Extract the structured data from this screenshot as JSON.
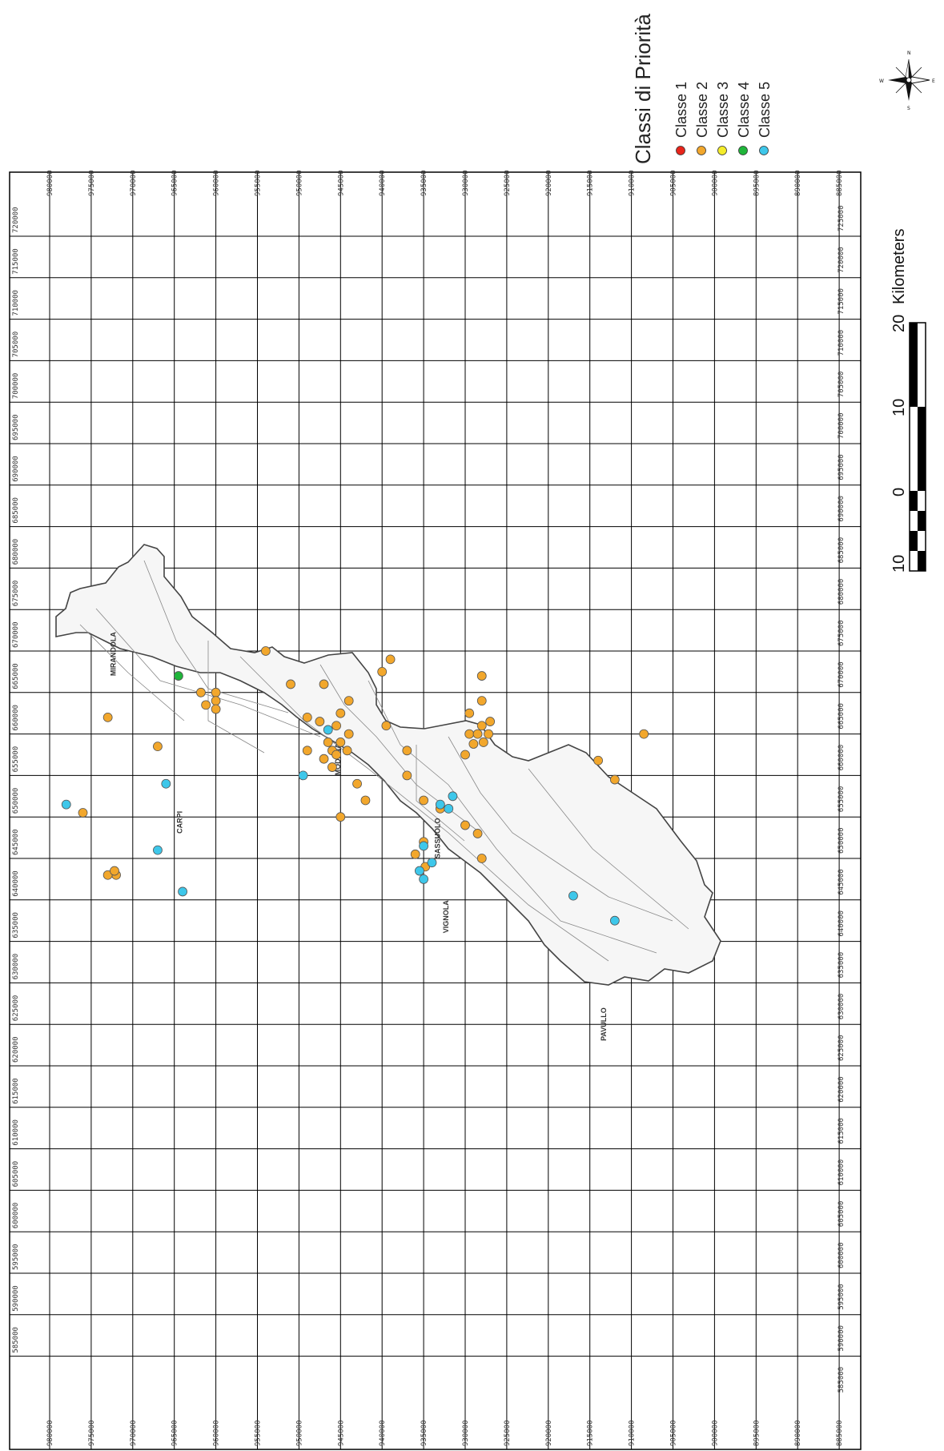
{
  "legend": {
    "title": "Classi di Priorità",
    "items": [
      {
        "label": "Classe 1",
        "color": "#e8251b"
      },
      {
        "label": "Classe 2",
        "color": "#f2a72c"
      },
      {
        "label": "Classe 3",
        "color": "#f4ec2a"
      },
      {
        "label": "Classe 4",
        "color": "#1fb53a"
      },
      {
        "label": "Classe 5",
        "color": "#3ec7ea"
      }
    ]
  },
  "scale_bar": {
    "unit": "Kilometers",
    "labels": [
      "10",
      "0",
      "10",
      "20"
    ]
  },
  "compass": {
    "n": "N",
    "e": "E",
    "s": "S",
    "w": "W"
  },
  "grid": {
    "top_labels": [
      "980000",
      "975000",
      "970000",
      "965000",
      "960000",
      "955000",
      "950000",
      "945000",
      "940000",
      "935000",
      "930000",
      "925000",
      "920000",
      "915000",
      "910000",
      "905000",
      "900000",
      "895000",
      "890000",
      "885000"
    ],
    "left_labels": [
      "720000",
      "715000",
      "710000",
      "705000",
      "700000",
      "695000",
      "690000",
      "685000",
      "680000",
      "675000",
      "670000",
      "665000",
      "660000",
      "655000",
      "650000",
      "645000",
      "640000",
      "635000",
      "630000",
      "625000",
      "620000",
      "615000",
      "610000",
      "605000",
      "600000",
      "595000",
      "590000",
      "585000"
    ],
    "right_labels": [
      "725000",
      "720000",
      "715000",
      "710000",
      "705000",
      "700000",
      "695000",
      "690000",
      "685000",
      "680000",
      "675000",
      "670000",
      "665000",
      "660000",
      "655000",
      "650000",
      "645000",
      "640000",
      "635000",
      "630000",
      "625000",
      "620000",
      "615000",
      "610000",
      "605000",
      "600000",
      "595000",
      "590000",
      "585000"
    ]
  },
  "town_labels": [
    "MODENA",
    "CARPI",
    "MIRANDOLA",
    "SASSUOLO",
    "VIGNOLA",
    "PAVULLO"
  ],
  "sites": [
    {
      "cls": 5,
      "x": 651500,
      "y": 978000
    },
    {
      "cls": 5,
      "x": 646000,
      "y": 967000
    },
    {
      "cls": 5,
      "x": 641000,
      "y": 964000
    },
    {
      "cls": 2,
      "x": 643000,
      "y": 972000
    },
    {
      "cls": 2,
      "x": 643000,
      "y": 973000
    },
    {
      "cls": 2,
      "x": 643500,
      "y": 972200
    },
    {
      "cls": 2,
      "x": 650500,
      "y": 976000
    },
    {
      "cls": 5,
      "x": 654000,
      "y": 966000
    },
    {
      "cls": 2,
      "x": 658500,
      "y": 967000
    },
    {
      "cls": 2,
      "x": 662000,
      "y": 973000
    },
    {
      "cls": 2,
      "x": 665000,
      "y": 960000
    },
    {
      "cls": 2,
      "x": 663500,
      "y": 961200
    },
    {
      "cls": 2,
      "x": 665000,
      "y": 961800
    },
    {
      "cls": 2,
      "x": 664000,
      "y": 960000
    },
    {
      "cls": 2,
      "x": 663000,
      "y": 960000
    },
    {
      "cls": 4,
      "x": 667000,
      "y": 964500
    },
    {
      "cls": 2,
      "x": 670000,
      "y": 954000
    },
    {
      "cls": 2,
      "x": 666000,
      "y": 951000
    },
    {
      "cls": 5,
      "x": 655000,
      "y": 949500
    },
    {
      "cls": 2,
      "x": 650000,
      "y": 945000
    },
    {
      "cls": 2,
      "x": 654000,
      "y": 943000
    },
    {
      "cls": 2,
      "x": 656000,
      "y": 946000
    },
    {
      "cls": 2,
      "x": 657000,
      "y": 947000
    },
    {
      "cls": 2,
      "x": 658000,
      "y": 946000
    },
    {
      "cls": 2,
      "x": 657500,
      "y": 945500
    },
    {
      "cls": 2,
      "x": 659000,
      "y": 945000
    },
    {
      "cls": 2,
      "x": 660000,
      "y": 944000
    },
    {
      "cls": 2,
      "x": 659000,
      "y": 946500
    },
    {
      "cls": 2,
      "x": 661000,
      "y": 945500
    },
    {
      "cls": 2,
      "x": 658000,
      "y": 944200
    },
    {
      "cls": 5,
      "x": 660500,
      "y": 946500
    },
    {
      "cls": 2,
      "x": 661500,
      "y": 947500
    },
    {
      "cls": 2,
      "x": 662500,
      "y": 945000
    },
    {
      "cls": 2,
      "x": 664000,
      "y": 944000
    },
    {
      "cls": 2,
      "x": 652000,
      "y": 942000
    },
    {
      "cls": 2,
      "x": 658000,
      "y": 949000
    },
    {
      "cls": 2,
      "x": 662000,
      "y": 949000
    },
    {
      "cls": 2,
      "x": 666000,
      "y": 947000
    },
    {
      "cls": 2,
      "x": 669000,
      "y": 939000
    },
    {
      "cls": 2,
      "x": 667500,
      "y": 940000
    },
    {
      "cls": 2,
      "x": 661000,
      "y": 939500
    },
    {
      "cls": 2,
      "x": 658000,
      "y": 937000
    },
    {
      "cls": 2,
      "x": 655000,
      "y": 937000
    },
    {
      "cls": 2,
      "x": 652000,
      "y": 935000
    },
    {
      "cls": 2,
      "x": 651000,
      "y": 933000
    },
    {
      "cls": 5,
      "x": 651000,
      "y": 932000
    },
    {
      "cls": 5,
      "x": 651500,
      "y": 933000
    },
    {
      "cls": 5,
      "x": 652500,
      "y": 931500
    },
    {
      "cls": 2,
      "x": 647000,
      "y": 935000
    },
    {
      "cls": 5,
      "x": 646500,
      "y": 935000
    },
    {
      "cls": 2,
      "x": 645500,
      "y": 936000
    },
    {
      "cls": 2,
      "x": 644000,
      "y": 934800
    },
    {
      "cls": 5,
      "x": 644500,
      "y": 934000
    },
    {
      "cls": 5,
      "x": 643500,
      "y": 935500
    },
    {
      "cls": 5,
      "x": 642500,
      "y": 935000
    },
    {
      "cls": 2,
      "x": 649000,
      "y": 930000
    },
    {
      "cls": 2,
      "x": 648000,
      "y": 928500
    },
    {
      "cls": 2,
      "x": 645000,
      "y": 928000
    },
    {
      "cls": 2,
      "x": 657500,
      "y": 930000
    },
    {
      "cls": 2,
      "x": 661000,
      "y": 928000
    },
    {
      "cls": 2,
      "x": 660000,
      "y": 929500
    },
    {
      "cls": 2,
      "x": 660000,
      "y": 928500
    },
    {
      "cls": 2,
      "x": 658800,
      "y": 929000
    },
    {
      "cls": 2,
      "x": 659000,
      "y": 927800
    },
    {
      "cls": 2,
      "x": 660000,
      "y": 927200
    },
    {
      "cls": 2,
      "x": 661500,
      "y": 927000
    },
    {
      "cls": 2,
      "x": 662500,
      "y": 929500
    },
    {
      "cls": 2,
      "x": 664000,
      "y": 928000
    },
    {
      "cls": 2,
      "x": 667000,
      "y": 928000
    },
    {
      "cls": 5,
      "x": 640500,
      "y": 917000
    },
    {
      "cls": 2,
      "x": 656800,
      "y": 914000
    },
    {
      "cls": 2,
      "x": 654500,
      "y": 912000
    },
    {
      "cls": 2,
      "x": 660000,
      "y": 908500
    },
    {
      "cls": 5,
      "x": 637500,
      "y": 912000
    }
  ]
}
